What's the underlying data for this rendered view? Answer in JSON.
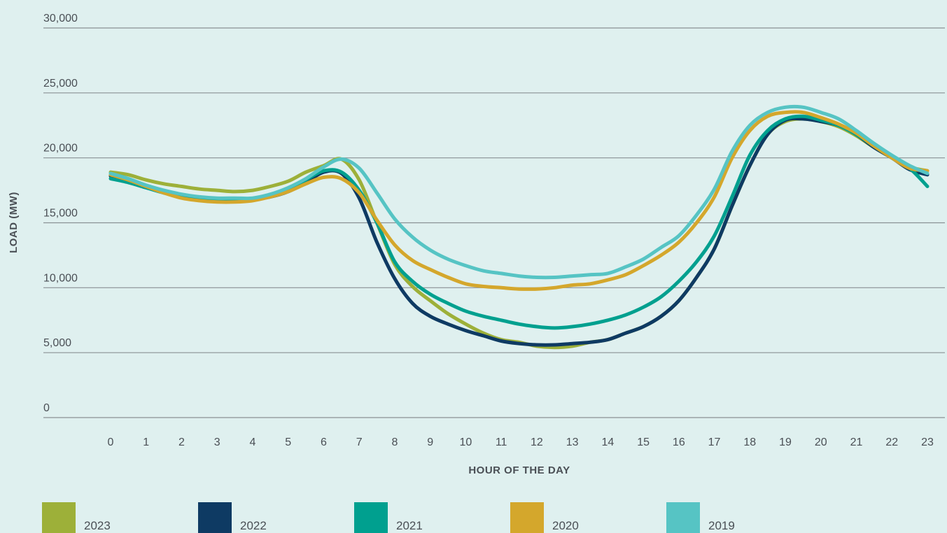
{
  "chart_data": {
    "type": "line",
    "xlabel": "HOUR OF THE DAY",
    "ylabel": "LOAD (MW)",
    "xlim": [
      0,
      23
    ],
    "ylim": [
      0,
      30000
    ],
    "x_ticks": [
      "0",
      "1",
      "2",
      "3",
      "4",
      "5",
      "6",
      "7",
      "8",
      "9",
      "10",
      "11",
      "12",
      "13",
      "14",
      "15",
      "16",
      "17",
      "18",
      "19",
      "20",
      "21",
      "22",
      "23"
    ],
    "y_ticks": [
      {
        "value": 0,
        "label": "0"
      },
      {
        "value": 5000,
        "label": "5,000"
      },
      {
        "value": 10000,
        "label": "10,000"
      },
      {
        "value": 15000,
        "label": "15,000"
      },
      {
        "value": 20000,
        "label": "20,000"
      },
      {
        "value": 25000,
        "label": "25,000"
      },
      {
        "value": 30000,
        "label": "30,000"
      }
    ],
    "grid": "horizontal",
    "legend_position": "bottom",
    "x": [
      0,
      0.5,
      1,
      1.5,
      2,
      2.5,
      3,
      3.5,
      4,
      4.5,
      5,
      5.5,
      6,
      6.5,
      7,
      7.5,
      8,
      8.5,
      9,
      9.5,
      10,
      10.5,
      11,
      11.5,
      12,
      12.5,
      13,
      13.5,
      14,
      14.5,
      15,
      15.5,
      16,
      16.5,
      17,
      17.5,
      18,
      18.5,
      19,
      19.5,
      20,
      20.5,
      21,
      21.5,
      22,
      22.5,
      23
    ],
    "series": [
      {
        "name": "2023",
        "color": "#9db039",
        "values": [
          18900,
          18700,
          18300,
          18000,
          17800,
          17600,
          17500,
          17400,
          17500,
          17800,
          18200,
          18900,
          19400,
          19900,
          18300,
          15000,
          11800,
          10100,
          9000,
          8000,
          7200,
          6500,
          6000,
          5800,
          5500,
          5400,
          5500,
          5800,
          6000,
          6500,
          7000,
          7800,
          9000,
          10800,
          13000,
          16300,
          19400,
          21800,
          22800,
          23000,
          22800,
          22400,
          21700,
          20800,
          20000,
          19300,
          19000
        ]
      },
      {
        "name": "2022",
        "color": "#0e3a63",
        "values": [
          18600,
          18300,
          17800,
          17400,
          17100,
          16900,
          16800,
          16800,
          16800,
          17000,
          17400,
          18100,
          18900,
          18800,
          16900,
          13500,
          10700,
          8800,
          7800,
          7200,
          6700,
          6300,
          5900,
          5700,
          5600,
          5600,
          5700,
          5800,
          6000,
          6500,
          7000,
          7800,
          9000,
          10800,
          13000,
          16300,
          19400,
          21800,
          22900,
          23000,
          22800,
          22500,
          21800,
          20800,
          20000,
          19100,
          18700
        ]
      },
      {
        "name": "2021",
        "color": "#00a08f",
        "values": [
          18400,
          18100,
          17700,
          17300,
          17000,
          16800,
          16800,
          16800,
          16800,
          17100,
          17500,
          18300,
          19000,
          18900,
          17500,
          15000,
          12000,
          10500,
          9500,
          8800,
          8200,
          7800,
          7500,
          7200,
          7000,
          6900,
          7000,
          7200,
          7500,
          7900,
          8500,
          9300,
          10500,
          12000,
          14000,
          17000,
          20200,
          22100,
          23000,
          23200,
          22900,
          22500,
          21800,
          20900,
          20000,
          19200,
          17800
        ]
      },
      {
        "name": "2020",
        "color": "#d4a72c",
        "values": [
          18700,
          18300,
          17800,
          17300,
          16900,
          16700,
          16600,
          16600,
          16700,
          17000,
          17400,
          18000,
          18500,
          18400,
          17300,
          15200,
          13300,
          12100,
          11400,
          10800,
          10300,
          10100,
          10000,
          9900,
          9900,
          10000,
          10200,
          10300,
          10600,
          11000,
          11700,
          12500,
          13500,
          15000,
          17000,
          20000,
          22100,
          23200,
          23500,
          23500,
          23100,
          22600,
          21900,
          20900,
          20000,
          19200,
          19000
        ]
      },
      {
        "name": "2019",
        "color": "#56c4c4",
        "values": [
          18800,
          18400,
          17900,
          17500,
          17200,
          17000,
          16900,
          16900,
          16900,
          17200,
          17700,
          18400,
          19300,
          19900,
          19200,
          17300,
          15300,
          13900,
          12900,
          12200,
          11700,
          11300,
          11100,
          10900,
          10800,
          10800,
          10900,
          11000,
          11100,
          11600,
          12200,
          13100,
          14000,
          15600,
          17600,
          20500,
          22500,
          23500,
          23900,
          23900,
          23500,
          23000,
          22100,
          21100,
          20200,
          19400,
          18800
        ]
      }
    ]
  }
}
